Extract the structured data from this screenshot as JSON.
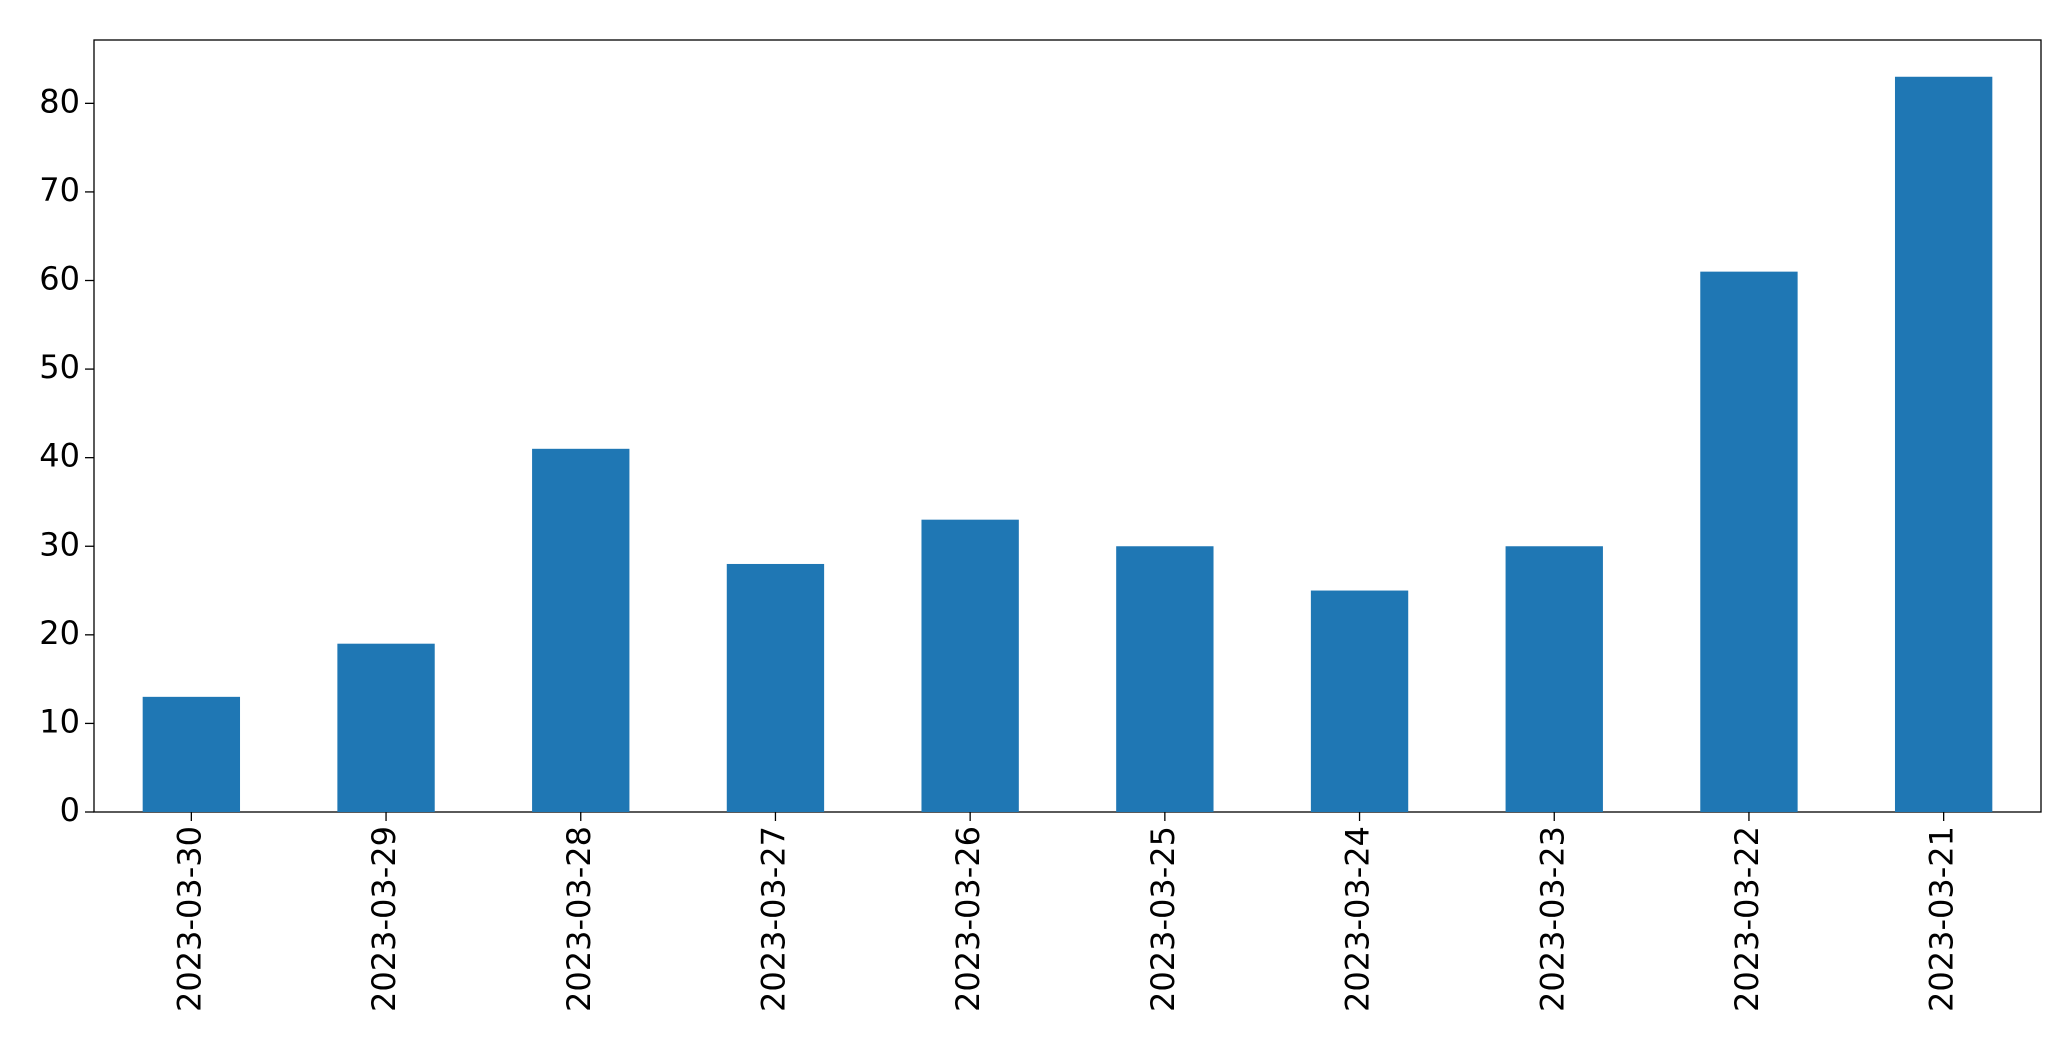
{
  "chart_data": {
    "type": "bar",
    "categories": [
      "2023-03-30",
      "2023-03-29",
      "2023-03-28",
      "2023-03-27",
      "2023-03-26",
      "2023-03-25",
      "2023-03-24",
      "2023-03-23",
      "2023-03-22",
      "2023-03-21"
    ],
    "values": [
      13,
      19,
      41,
      28,
      33,
      30,
      25,
      30,
      61,
      83
    ],
    "color": "#1f77b4",
    "ylim": [
      0,
      87.15
    ],
    "yticks": [
      0,
      10,
      20,
      30,
      40,
      50,
      60,
      70,
      80
    ],
    "grid": false
  }
}
